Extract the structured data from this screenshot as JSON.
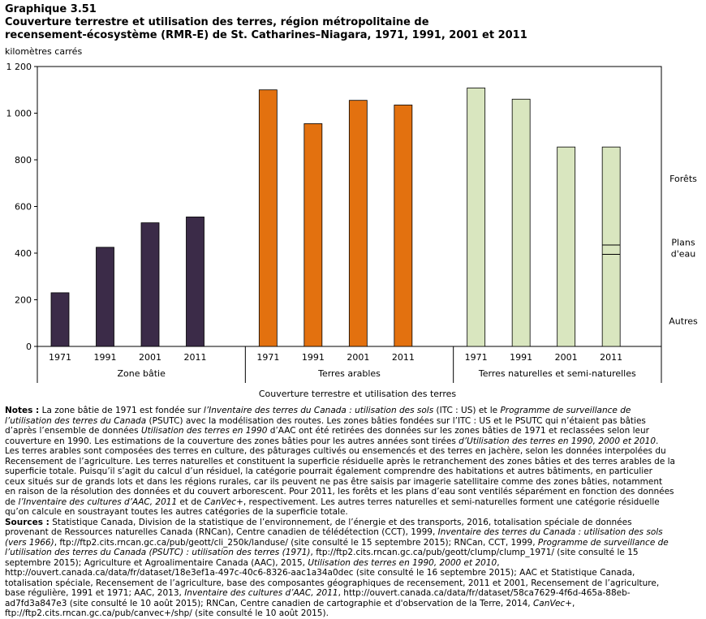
{
  "title": {
    "line1": "Graphique  3.51",
    "line2": "Couverture terrestre et utilisation des terres, région métropolitaine de",
    "line3": "recensement-écosystème (RMR-E) de St. Catharines–Niagara,  1971, 1991, 2001 et 2011"
  },
  "chart_data": {
    "type": "bar",
    "ylabel": "kilomètres carrés",
    "xlabel": "Couverture terrestre et utilisation des terres",
    "ylim": [
      0,
      1200
    ],
    "yticks": [
      0,
      200,
      400,
      600,
      800,
      1000,
      1200
    ],
    "ytick_labels": [
      "0",
      "200",
      "400",
      "600",
      "800",
      "1 000",
      "1 200"
    ],
    "groups": [
      {
        "name": "Zone bâtie",
        "color": "#3b2b48",
        "categories": [
          "1971",
          "1991",
          "2001",
          "2011"
        ],
        "values": [
          230,
          425,
          530,
          555
        ]
      },
      {
        "name": "Terres arables",
        "color": "#e3710f",
        "categories": [
          "1971",
          "1991",
          "2001",
          "2011"
        ],
        "values": [
          1100,
          955,
          1055,
          1035
        ]
      },
      {
        "name": "Terres naturelles et semi-naturelles",
        "color": "#d9e6bf",
        "categories": [
          "1971",
          "1991",
          "2001",
          "2011"
        ],
        "values": [
          1108,
          1060,
          855,
          855
        ]
      }
    ],
    "annotations": [
      {
        "label": "Forêts",
        "value": 720
      },
      {
        "label": "Plans d'eau",
        "value": 420
      },
      {
        "label": "Autres",
        "value": 110
      }
    ],
    "split_lines_2011": [
      435,
      395
    ]
  },
  "notes": {
    "label": "Notes :",
    "p1": " La zone bâtie de 1971 est fondée sur ",
    "it1": "l’Inventaire des terres du Canada : utilisation des sols",
    "p2": " (ITC : US) et le ",
    "it2": "Programme de surveillance de l’utilisation des terres du Canada",
    "p3": " (PSUTC) avec la modélisation des routes. Les zones bâties fondées sur l’ITC : US et le PSUTC qui n’étaient pas bâties d’après l’ensemble de données ",
    "it3": "Utilisation des terres en 1990",
    "p4": " d’AAC ont été retirées des données sur les zones bâties de 1971 et reclassées selon leur couverture en 1990. Les estimations de la couverture des zones bâties pour les autres années sont tirées ",
    "it4": "d’Utilisation des terres en 1990, 2000 et 2010",
    "p5": ". Les terres arables sont composées des terres en culture, des pâturages cultivés ou ensemencés et des terres en jachère, selon les données interpolées du Recensement de l’agriculture. Les terres naturelles et constituent la superficie résiduelle après le retranchement des zones bâties et des terres arables de la superficie totale. Puisqu’il s’agit du calcul d’un résiduel, la catégorie pourrait également comprendre des habitations et autres bâtiments, en particulier ceux situés sur de grands lots et dans les régions rurales, car ils peuvent ne pas être saisis par imagerie satellitaire comme des zones bâties, notamment en raison de la résolution des données et du couvert arborescent. Pour 2011, les forêts et les plans d’eau sont ventilés séparément en fonction des données de ",
    "it5": "l’Inventaire des cultures d’AAC, 2011",
    "p6": " et de ",
    "it6": "CanVec+",
    "p7": ", respectivement. Les autres terres naturelles et semi-naturelles forment une catégorie résiduelle qu’on calcule en soustrayant toutes les autres catégories de la superficie totale."
  },
  "sources": {
    "label": "Sources :",
    "s1": " Statistique Canada, Division de la statistique de l’environnement, de l’énergie et des transports, 2016, totalisation spéciale de données provenant de Ressources naturelles Canada (RNCan), Centre canadien de télédétection (CCT), 1999, ",
    "it1": "Inventaire des terres du Canada : utilisation des sols (vers 1966)",
    "s2": ", ftp://ftp2.cits.rncan.gc.ca/pub/geott/cli_250k/landuse/ (site consulté le 15 septembre 2015); RNCan, CCT, 1999, ",
    "it2": "Programme de surveillance de l’utilisation des terres du Canada (PSUTC) : utilisation des terres (1971)",
    "s3": ", ftp://ftp2.cits.rncan.gc.ca/pub/geott/clump/clump_1971/ (site consulté le 15 septembre 2015); Agriculture et Agroalimentaire Canada (AAC), 2015, ",
    "it3": "Utilisation des terres en 1990, 2000 et 2010",
    "s4": ", http://ouvert.canada.ca/data/fr/dataset/18e3ef1a-497c-40c6-8326-aac1a34a0dec (site consulté le 16 septembre 2015); AAC et Statistique Canada, totalisation spéciale, Recensement de l’agriculture, base des composantes géographiques de recensement, 2011 et 2001, Recensement de l’agriculture, base régulière, 1991 et 1971; AAC, 2013, ",
    "it4": "Inventaire des cultures d’AAC, 2011",
    "s5": ", http://ouvert.canada.ca/data/fr/dataset/58ca7629-4f6d-465a-88eb-ad7fd3a847e3 (site consulté le 10 août 2015); RNCan, Centre canadien de cartographie et d'observation de la Terre, 2014, ",
    "it5": "CanVec+",
    "s6": ", ftp://ftp2.cits.rncan.gc.ca/pub/canvec+/shp/ (site consulté le 10 août 2015)."
  }
}
